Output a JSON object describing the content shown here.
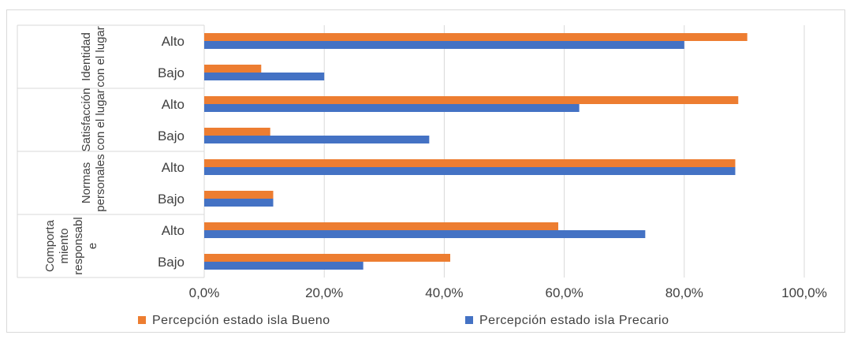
{
  "chart_data": {
    "type": "bar",
    "orientation": "horizontal",
    "groups": [
      {
        "label_lines": [
          "Identidad",
          "con el lugar"
        ],
        "categories": [
          "Alto",
          "Bajo"
        ]
      },
      {
        "label_lines": [
          "Satisfacción",
          "con el lugar"
        ],
        "categories": [
          "Alto",
          "Bajo"
        ]
      },
      {
        "label_lines": [
          "Normas",
          "personales"
        ],
        "categories": [
          "Alto",
          "Bajo"
        ]
      },
      {
        "label_lines": [
          "Comporta",
          "miento",
          "responsabl",
          "e"
        ],
        "categories": [
          "Alto",
          "Bajo"
        ]
      }
    ],
    "series": [
      {
        "name": "Percepción estado isla Bueno",
        "color": "#ED7D31",
        "values": [
          90.5,
          9.5,
          89.0,
          11.0,
          88.5,
          11.5,
          59.0,
          41.0
        ]
      },
      {
        "name": "Percepción estado isla Precario",
        "color": "#4472C4",
        "values": [
          80.0,
          20.0,
          62.5,
          37.5,
          88.5,
          11.5,
          73.5,
          26.5
        ]
      }
    ],
    "x_ticks": [
      0,
      20,
      40,
      60,
      80,
      100
    ],
    "x_tick_labels": [
      "0,0%",
      "20,0%",
      "40,0%",
      "60,0%",
      "80,0%",
      "100,0%"
    ],
    "xlim": [
      0,
      100
    ],
    "grid": true,
    "legend_position": "bottom",
    "title": "",
    "xlabel": "",
    "ylabel": ""
  }
}
